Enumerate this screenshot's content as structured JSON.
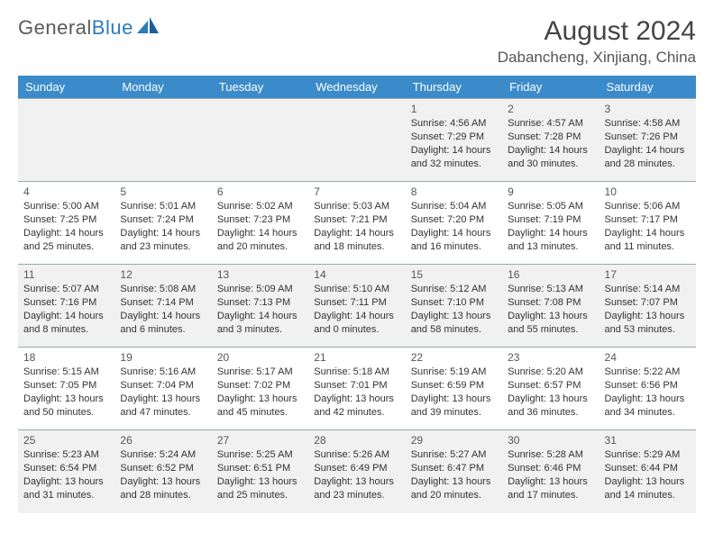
{
  "logo": {
    "text1": "General",
    "text2": "Blue"
  },
  "title": "August 2024",
  "location": "Dabancheng, Xinjiang, China",
  "dayHeaders": [
    "Sunday",
    "Monday",
    "Tuesday",
    "Wednesday",
    "Thursday",
    "Friday",
    "Saturday"
  ],
  "colors": {
    "headerBg": "#3b8bca",
    "headerText": "#ffffff",
    "rowOdd": "#f1f1f1",
    "rowEven": "#ffffff",
    "border": "#99aaaa",
    "logoBlue": "#2b7bbf"
  },
  "weeks": [
    [
      null,
      null,
      null,
      null,
      {
        "n": "1",
        "sunrise": "4:56 AM",
        "sunset": "7:29 PM",
        "dl1": "14 hours",
        "dl2": "32 minutes"
      },
      {
        "n": "2",
        "sunrise": "4:57 AM",
        "sunset": "7:28 PM",
        "dl1": "14 hours",
        "dl2": "30 minutes"
      },
      {
        "n": "3",
        "sunrise": "4:58 AM",
        "sunset": "7:26 PM",
        "dl1": "14 hours",
        "dl2": "28 minutes"
      }
    ],
    [
      {
        "n": "4",
        "sunrise": "5:00 AM",
        "sunset": "7:25 PM",
        "dl1": "14 hours",
        "dl2": "25 minutes"
      },
      {
        "n": "5",
        "sunrise": "5:01 AM",
        "sunset": "7:24 PM",
        "dl1": "14 hours",
        "dl2": "23 minutes"
      },
      {
        "n": "6",
        "sunrise": "5:02 AM",
        "sunset": "7:23 PM",
        "dl1": "14 hours",
        "dl2": "20 minutes"
      },
      {
        "n": "7",
        "sunrise": "5:03 AM",
        "sunset": "7:21 PM",
        "dl1": "14 hours",
        "dl2": "18 minutes"
      },
      {
        "n": "8",
        "sunrise": "5:04 AM",
        "sunset": "7:20 PM",
        "dl1": "14 hours",
        "dl2": "16 minutes"
      },
      {
        "n": "9",
        "sunrise": "5:05 AM",
        "sunset": "7:19 PM",
        "dl1": "14 hours",
        "dl2": "13 minutes"
      },
      {
        "n": "10",
        "sunrise": "5:06 AM",
        "sunset": "7:17 PM",
        "dl1": "14 hours",
        "dl2": "11 minutes"
      }
    ],
    [
      {
        "n": "11",
        "sunrise": "5:07 AM",
        "sunset": "7:16 PM",
        "dl1": "14 hours",
        "dl2": "8 minutes"
      },
      {
        "n": "12",
        "sunrise": "5:08 AM",
        "sunset": "7:14 PM",
        "dl1": "14 hours",
        "dl2": "6 minutes"
      },
      {
        "n": "13",
        "sunrise": "5:09 AM",
        "sunset": "7:13 PM",
        "dl1": "14 hours",
        "dl2": "3 minutes"
      },
      {
        "n": "14",
        "sunrise": "5:10 AM",
        "sunset": "7:11 PM",
        "dl1": "14 hours",
        "dl2": "0 minutes"
      },
      {
        "n": "15",
        "sunrise": "5:12 AM",
        "sunset": "7:10 PM",
        "dl1": "13 hours",
        "dl2": "58 minutes"
      },
      {
        "n": "16",
        "sunrise": "5:13 AM",
        "sunset": "7:08 PM",
        "dl1": "13 hours",
        "dl2": "55 minutes"
      },
      {
        "n": "17",
        "sunrise": "5:14 AM",
        "sunset": "7:07 PM",
        "dl1": "13 hours",
        "dl2": "53 minutes"
      }
    ],
    [
      {
        "n": "18",
        "sunrise": "5:15 AM",
        "sunset": "7:05 PM",
        "dl1": "13 hours",
        "dl2": "50 minutes"
      },
      {
        "n": "19",
        "sunrise": "5:16 AM",
        "sunset": "7:04 PM",
        "dl1": "13 hours",
        "dl2": "47 minutes"
      },
      {
        "n": "20",
        "sunrise": "5:17 AM",
        "sunset": "7:02 PM",
        "dl1": "13 hours",
        "dl2": "45 minutes"
      },
      {
        "n": "21",
        "sunrise": "5:18 AM",
        "sunset": "7:01 PM",
        "dl1": "13 hours",
        "dl2": "42 minutes"
      },
      {
        "n": "22",
        "sunrise": "5:19 AM",
        "sunset": "6:59 PM",
        "dl1": "13 hours",
        "dl2": "39 minutes"
      },
      {
        "n": "23",
        "sunrise": "5:20 AM",
        "sunset": "6:57 PM",
        "dl1": "13 hours",
        "dl2": "36 minutes"
      },
      {
        "n": "24",
        "sunrise": "5:22 AM",
        "sunset": "6:56 PM",
        "dl1": "13 hours",
        "dl2": "34 minutes"
      }
    ],
    [
      {
        "n": "25",
        "sunrise": "5:23 AM",
        "sunset": "6:54 PM",
        "dl1": "13 hours",
        "dl2": "31 minutes"
      },
      {
        "n": "26",
        "sunrise": "5:24 AM",
        "sunset": "6:52 PM",
        "dl1": "13 hours",
        "dl2": "28 minutes"
      },
      {
        "n": "27",
        "sunrise": "5:25 AM",
        "sunset": "6:51 PM",
        "dl1": "13 hours",
        "dl2": "25 minutes"
      },
      {
        "n": "28",
        "sunrise": "5:26 AM",
        "sunset": "6:49 PM",
        "dl1": "13 hours",
        "dl2": "23 minutes"
      },
      {
        "n": "29",
        "sunrise": "5:27 AM",
        "sunset": "6:47 PM",
        "dl1": "13 hours",
        "dl2": "20 minutes"
      },
      {
        "n": "30",
        "sunrise": "5:28 AM",
        "sunset": "6:46 PM",
        "dl1": "13 hours",
        "dl2": "17 minutes"
      },
      {
        "n": "31",
        "sunrise": "5:29 AM",
        "sunset": "6:44 PM",
        "dl1": "13 hours",
        "dl2": "14 minutes"
      }
    ]
  ]
}
